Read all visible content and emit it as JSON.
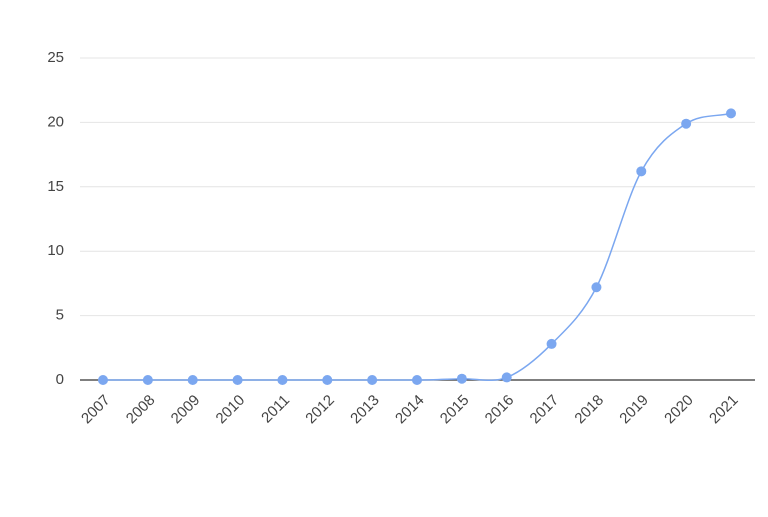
{
  "chart_data": {
    "type": "line",
    "categories": [
      "2007",
      "2008",
      "2009",
      "2010",
      "2011",
      "2012",
      "2013",
      "2014",
      "2015",
      "2016",
      "2017",
      "2018",
      "2019",
      "2020",
      "2021"
    ],
    "values": [
      0,
      0,
      0,
      0,
      0,
      0,
      0,
      0,
      0.1,
      0.2,
      2.8,
      7.2,
      16.2,
      19.9,
      20.7
    ],
    "color": "#7ba7f0",
    "ylim": [
      0,
      25
    ],
    "yticks": [
      0,
      5,
      10,
      15,
      20,
      25
    ],
    "grid": true
  }
}
